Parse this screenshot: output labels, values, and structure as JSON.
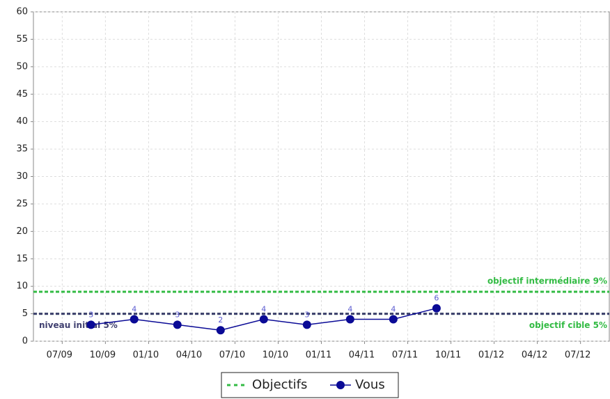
{
  "chart_data": {
    "type": "line",
    "x": [
      "09/09",
      "12/09",
      "03/10",
      "06/10",
      "09/10",
      "12/10",
      "03/11",
      "06/11",
      "09/11"
    ],
    "series": [
      {
        "name": "Vous",
        "color": "#0a0a96",
        "values": [
          3,
          4,
          3,
          2,
          4,
          3,
          4,
          4,
          6
        ]
      }
    ],
    "reference_lines": [
      {
        "label": "objectif intermédiaire 9%",
        "value": 9,
        "color": "#33bb44"
      },
      {
        "label": "objectif cible 5%",
        "value": 5,
        "color": "#33bb44"
      },
      {
        "label": "niveau initial 5%",
        "value": 5,
        "color": "#404070"
      }
    ],
    "reference_legend": "Objectifs",
    "xlim": [
      "05/09",
      "09/12"
    ],
    "xticks": [
      "07/09",
      "10/09",
      "01/10",
      "04/10",
      "07/10",
      "10/10",
      "01/11",
      "04/11",
      "07/11",
      "10/11",
      "01/12",
      "04/12",
      "07/12"
    ],
    "ylim": [
      0,
      60
    ],
    "yticks": [
      0,
      5,
      10,
      15,
      20,
      25,
      30,
      35,
      40,
      45,
      50,
      55,
      60
    ],
    "grid": true
  }
}
